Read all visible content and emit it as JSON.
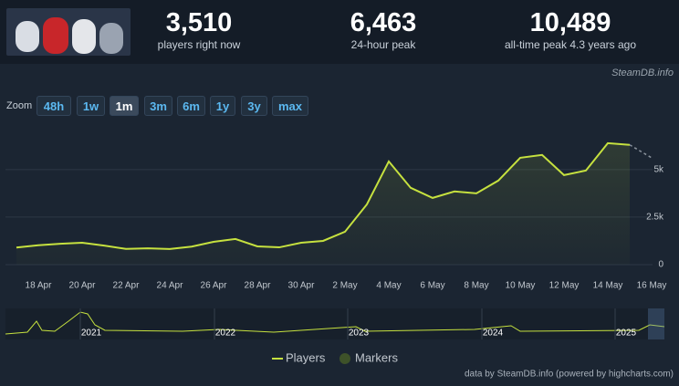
{
  "stats": [
    {
      "value": "3,510",
      "label": "players right now"
    },
    {
      "value": "6,463",
      "label": "24-hour peak"
    },
    {
      "value": "10,489",
      "label": "all-time peak 4.3 years ago"
    }
  ],
  "watermark": "SteamDB.info",
  "zoom": {
    "label": "Zoom",
    "buttons": [
      "48h",
      "1w",
      "1m",
      "3m",
      "6m",
      "1y",
      "3y",
      "max"
    ],
    "active": 2
  },
  "chart_data": {
    "type": "line",
    "categories": [
      null,
      "18 Apr",
      null,
      "20 Apr",
      null,
      "22 Apr",
      null,
      "24 Apr",
      null,
      "26 Apr",
      null,
      "28 Apr",
      null,
      "30 Apr",
      null,
      "2 May",
      null,
      "4 May",
      null,
      "6 May",
      null,
      "8 May",
      null,
      "10 May",
      null,
      "12 May",
      null,
      "14 May",
      null,
      "16 May"
    ],
    "series": [
      {
        "name": "Players",
        "color": "#c6e13f",
        "values": [
          900,
          1020,
          1100,
          1150,
          1000,
          830,
          860,
          820,
          950,
          1200,
          1350,
          960,
          910,
          1150,
          1250,
          1730,
          3170,
          5430,
          4040,
          3510,
          3850,
          3750,
          4420,
          5620,
          5770,
          4710,
          4950,
          6390,
          6300,
          5620
        ]
      }
    ],
    "ylim": [
      0,
      7200
    ],
    "yticks": [
      0,
      {
        "value": 2500,
        "label": "2.5k"
      },
      {
        "value": 5000,
        "label": "5k"
      }
    ],
    "grid": true,
    "markers_legend": {
      "name": "Markers",
      "color": "#3e5229"
    },
    "navigator_labels": [
      "2021",
      "2022",
      "2023",
      "2024",
      "2025"
    ]
  },
  "credit": "data by SteamDB.info (powered by highcharts.com)"
}
